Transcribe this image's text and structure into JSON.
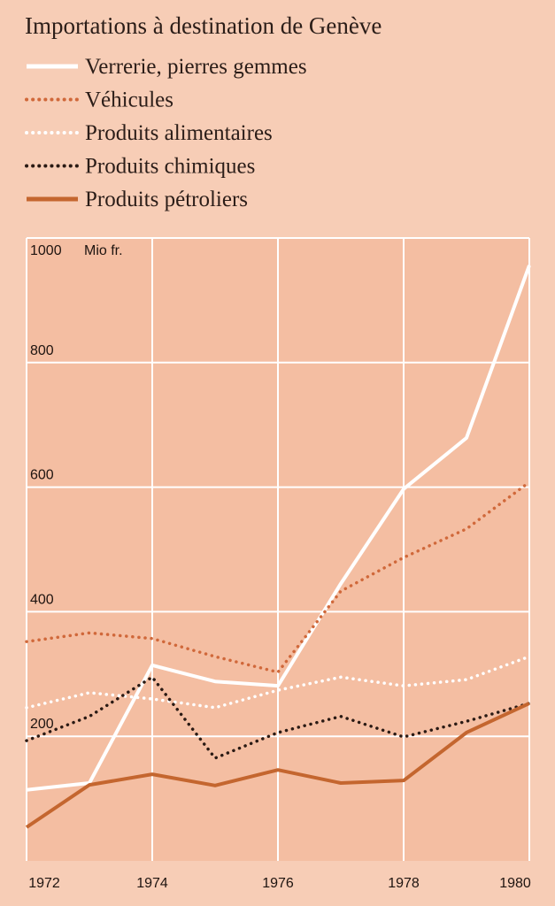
{
  "chart_data": {
    "type": "line",
    "title": "Importations à destination de Genève",
    "y_unit": "Mio fr.",
    "x": [
      1972,
      1973,
      1974,
      1975,
      1976,
      1977,
      1978,
      1979,
      1980
    ],
    "xlim": [
      1972,
      1980
    ],
    "xticks": [
      1972,
      1974,
      1976,
      1978,
      1980
    ],
    "ylim": [
      0,
      1000
    ],
    "yticks": [
      200,
      400,
      600,
      800,
      1000
    ],
    "grid": true,
    "series": [
      {
        "name": "Verrerie, pierres gemmes",
        "color": "#ffffff",
        "line_style": "solid",
        "values": [
          114,
          125,
          314,
          288,
          281,
          445,
          597,
          679,
          956
        ]
      },
      {
        "name": "Véhicules",
        "color": "#d0683a",
        "line_style": "dotted",
        "values": [
          352,
          366,
          357,
          328,
          303,
          433,
          487,
          533,
          608
        ]
      },
      {
        "name": "Produits alimentaires",
        "color": "#ffffff",
        "line_style": "dotted",
        "values": [
          246,
          270,
          260,
          246,
          274,
          295,
          281,
          291,
          328
        ]
      },
      {
        "name": "Produits chimiques",
        "color": "#2a1a14",
        "line_style": "dotted",
        "values": [
          193,
          232,
          295,
          165,
          206,
          232,
          199,
          224,
          253
        ]
      },
      {
        "name": "Produits pétroliers",
        "color": "#c4662f",
        "line_style": "solid",
        "values": [
          54,
          122,
          139,
          121,
          146,
          125,
          129,
          206,
          253
        ]
      }
    ]
  }
}
